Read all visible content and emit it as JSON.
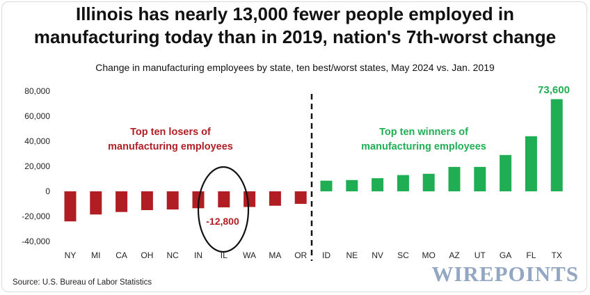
{
  "header": {
    "title_line1": "Illinois has nearly 13,000 fewer people employed in",
    "title_line2": "manufacturing today than in 2019, nation's 7th-worst change",
    "subtitle": "Change in manufacturing employees by state, ten best/worst states, May 2024 vs. Jan. 2019"
  },
  "footer": {
    "source": "Source: U.S. Bureau of Labor Statistics",
    "brand": "WIREPOINTS"
  },
  "colors": {
    "losers": "#b01e23",
    "winners": "#1fae53"
  },
  "chart_data": {
    "type": "bar",
    "categories": [
      "NY",
      "MI",
      "CA",
      "OH",
      "NC",
      "IN",
      "IL",
      "WA",
      "MA",
      "OR",
      "ID",
      "NE",
      "NV",
      "SC",
      "MO",
      "AZ",
      "UT",
      "GA",
      "FL",
      "TX"
    ],
    "values": [
      -24000,
      -18500,
      -16500,
      -15000,
      -14500,
      -13500,
      -12800,
      -12500,
      -11500,
      -10000,
      8500,
      9000,
      10500,
      13000,
      14000,
      19500,
      19500,
      29000,
      44000,
      73600
    ],
    "group": [
      "loser",
      "loser",
      "loser",
      "loser",
      "loser",
      "loser",
      "loser",
      "loser",
      "loser",
      "loser",
      "winner",
      "winner",
      "winner",
      "winner",
      "winner",
      "winner",
      "winner",
      "winner",
      "winner",
      "winner"
    ],
    "ylim": [
      -40000,
      80000
    ],
    "yticks": [
      80000,
      60000,
      40000,
      20000,
      0,
      -20000,
      -40000
    ],
    "ytick_labels": [
      "80,000",
      "60,000",
      "40,000",
      "20,000",
      "0",
      "-20,000",
      "-40,000"
    ],
    "grid": false,
    "annotations": {
      "losers_line1": "Top ten losers of",
      "losers_line2": "manufacturing employees",
      "winners_line1": "Top ten winners of",
      "winners_line2": "manufacturing employees",
      "il_label": "-12,800",
      "tx_label": "73,600"
    }
  }
}
